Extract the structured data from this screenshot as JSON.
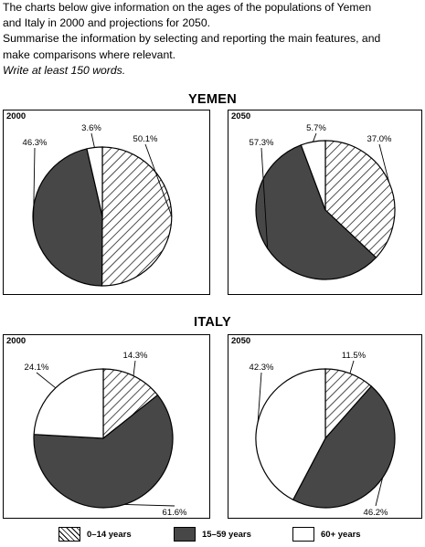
{
  "prompt": {
    "lines": [
      "The charts below give information on the ages of the populations of Yemen",
      "and Italy in 2000 and projections for 2050.",
      "Summarise the information by selecting and reporting the main features, and",
      "make comparisons where relevant."
    ],
    "instruction": "Write at least 150 words."
  },
  "colors": {
    "hatch": "#000000",
    "dark": "#474747",
    "light": "#ffffff",
    "border": "#000000"
  },
  "legend": [
    {
      "label": "0–14 years",
      "fill": "hatch"
    },
    {
      "label": "15–59 years",
      "fill": "dark"
    },
    {
      "label": "60+ years",
      "fill": "light"
    }
  ],
  "chart_data": [
    {
      "type": "pie",
      "title": "YEMEN",
      "subtitle": "2000",
      "categories": [
        "0–14 years",
        "15–59 years",
        "60+ years"
      ],
      "values": [
        50.1,
        46.3,
        3.6
      ],
      "labels": [
        "50.1%",
        "46.3%",
        "3.6%"
      ]
    },
    {
      "type": "pie",
      "title": "YEMEN",
      "subtitle": "2050",
      "categories": [
        "0–14 years",
        "15–59 years",
        "60+ years"
      ],
      "values": [
        37.0,
        57.3,
        5.7
      ],
      "labels": [
        "37.0%",
        "57.3%",
        "5.7%"
      ]
    },
    {
      "type": "pie",
      "title": "ITALY",
      "subtitle": "2000",
      "categories": [
        "0–14 years",
        "15–59 years",
        "60+ years"
      ],
      "values": [
        14.3,
        61.6,
        24.1
      ],
      "labels": [
        "14.3%",
        "61.6%",
        "24.1%"
      ]
    },
    {
      "type": "pie",
      "title": "ITALY",
      "subtitle": "2050",
      "categories": [
        "0–14 years",
        "15–59 years",
        "60+ years"
      ],
      "values": [
        11.5,
        46.2,
        42.3
      ],
      "labels": [
        "11.5%",
        "46.2%",
        "42.3%"
      ]
    }
  ]
}
